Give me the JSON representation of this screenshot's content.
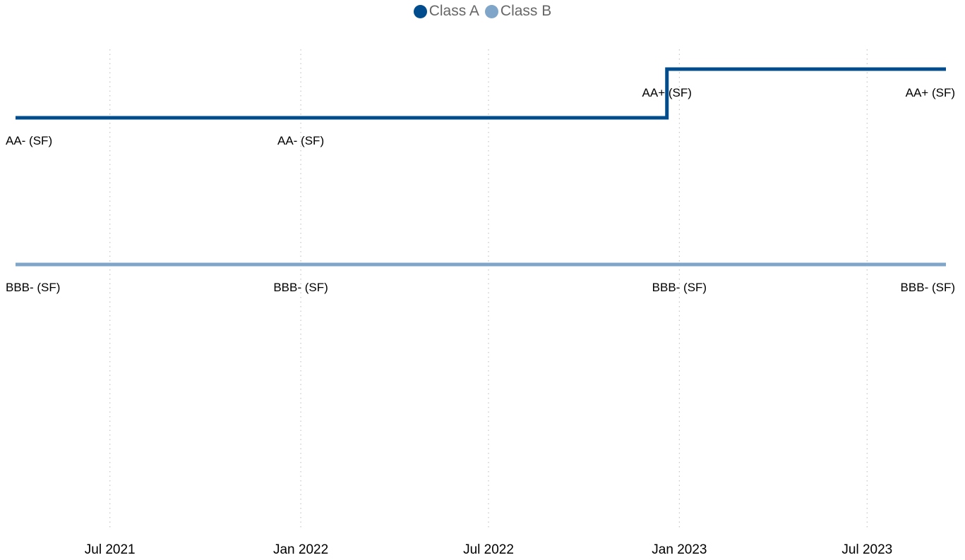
{
  "chart_data": {
    "type": "line",
    "step": true,
    "title": "",
    "xlabel": "",
    "ylabel": "",
    "legend_position": "top-center",
    "grid": "vertical-dotted",
    "x_ticks": [
      "Jul 2021",
      "Jan 2022",
      "Jul 2022",
      "Jan 2023",
      "Jul 2023"
    ],
    "series": [
      {
        "name": "Class A",
        "color": "#004c8c",
        "points": [
          {
            "date": "2021-04-01",
            "rating": "AA- (SF)"
          },
          {
            "date": "2022-01-01",
            "rating": "AA- (SF)"
          },
          {
            "date": "2022-12-20",
            "rating": "AA+ (SF)"
          },
          {
            "date": "2023-09-15",
            "rating": "AA+ (SF)"
          }
        ]
      },
      {
        "name": "Class B",
        "color": "#7fa5c8",
        "points": [
          {
            "date": "2021-04-01",
            "rating": "BBB- (SF)"
          },
          {
            "date": "2022-01-01",
            "rating": "BBB- (SF)"
          },
          {
            "date": "2023-01-01",
            "rating": "BBB- (SF)"
          },
          {
            "date": "2023-09-15",
            "rating": "BBB- (SF)"
          }
        ]
      }
    ]
  }
}
